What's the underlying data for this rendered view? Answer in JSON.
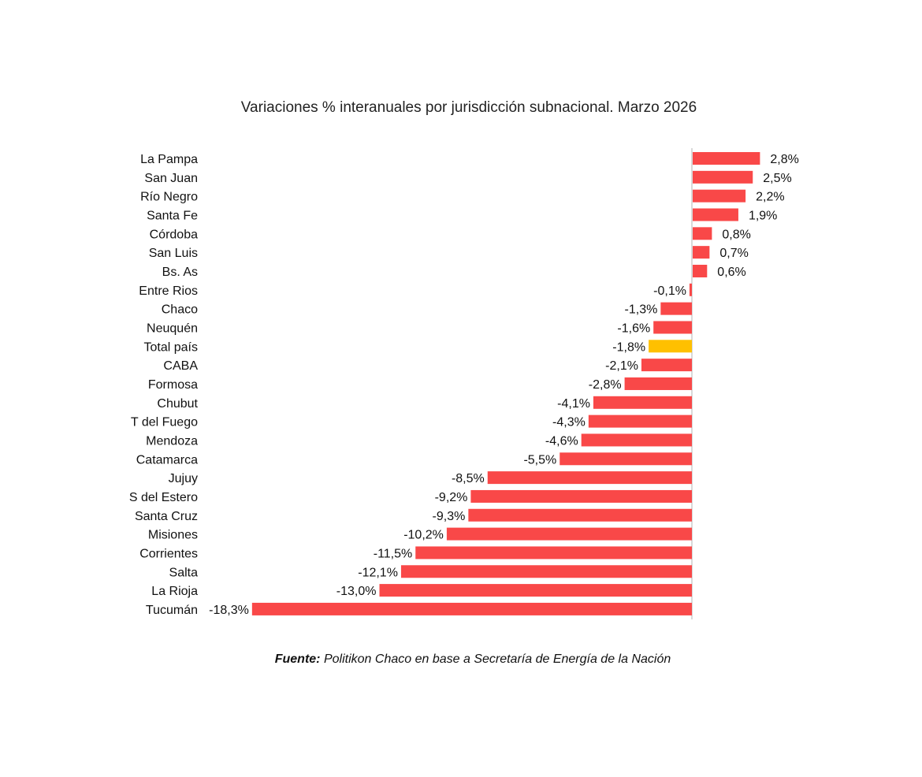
{
  "chart_data": {
    "type": "bar",
    "orientation": "horizontal",
    "title": "Variaciones % interanuales por jurisdicción subnacional. Marzo 2026",
    "source_label": "Fuente:",
    "source_text": "Politikon Chaco en base a Secretaría de Energía de la Nación",
    "categories": [
      "La Pampa",
      "San Juan",
      "Río Negro",
      "Santa Fe",
      "Córdoba",
      "San Luis",
      "Bs. As",
      "Entre Rios",
      "Chaco",
      "Neuquén",
      "Total país",
      "CABA",
      "Formosa",
      "Chubut",
      "T del Fuego",
      "Mendoza",
      "Catamarca",
      "Jujuy",
      "S del Estero",
      "Santa Cruz",
      "Misiones",
      "Corrientes",
      "Salta",
      "La Rioja",
      "Tucumán"
    ],
    "values": [
      2.8,
      2.5,
      2.2,
      1.9,
      0.8,
      0.7,
      0.6,
      -0.1,
      -1.3,
      -1.6,
      -1.8,
      -2.1,
      -2.8,
      -4.1,
      -4.3,
      -4.6,
      -5.5,
      -8.5,
      -9.2,
      -9.3,
      -10.2,
      -11.5,
      -12.1,
      -13.0,
      -18.3
    ],
    "labels": [
      "2,8%",
      "2,5%",
      "2,2%",
      "1,9%",
      "0,8%",
      "0,7%",
      "0,6%",
      "-0,1%",
      "-1,3%",
      "-1,6%",
      "-1,8%",
      "-2,1%",
      "-2,8%",
      "-4,1%",
      "-4,3%",
      "-4,6%",
      "-5,5%",
      "-8,5%",
      "-9,2%",
      "-9,3%",
      "-10,2%",
      "-11,5%",
      "-12,1%",
      "-13,0%",
      "-18,3%"
    ],
    "highlight": "Total país",
    "colors": {
      "default": "#F94848",
      "highlight": "#FFC000",
      "axis": "#d9d9d9"
    },
    "xlim": [
      -18.3,
      2.8
    ],
    "grid": false,
    "legend": "none"
  }
}
